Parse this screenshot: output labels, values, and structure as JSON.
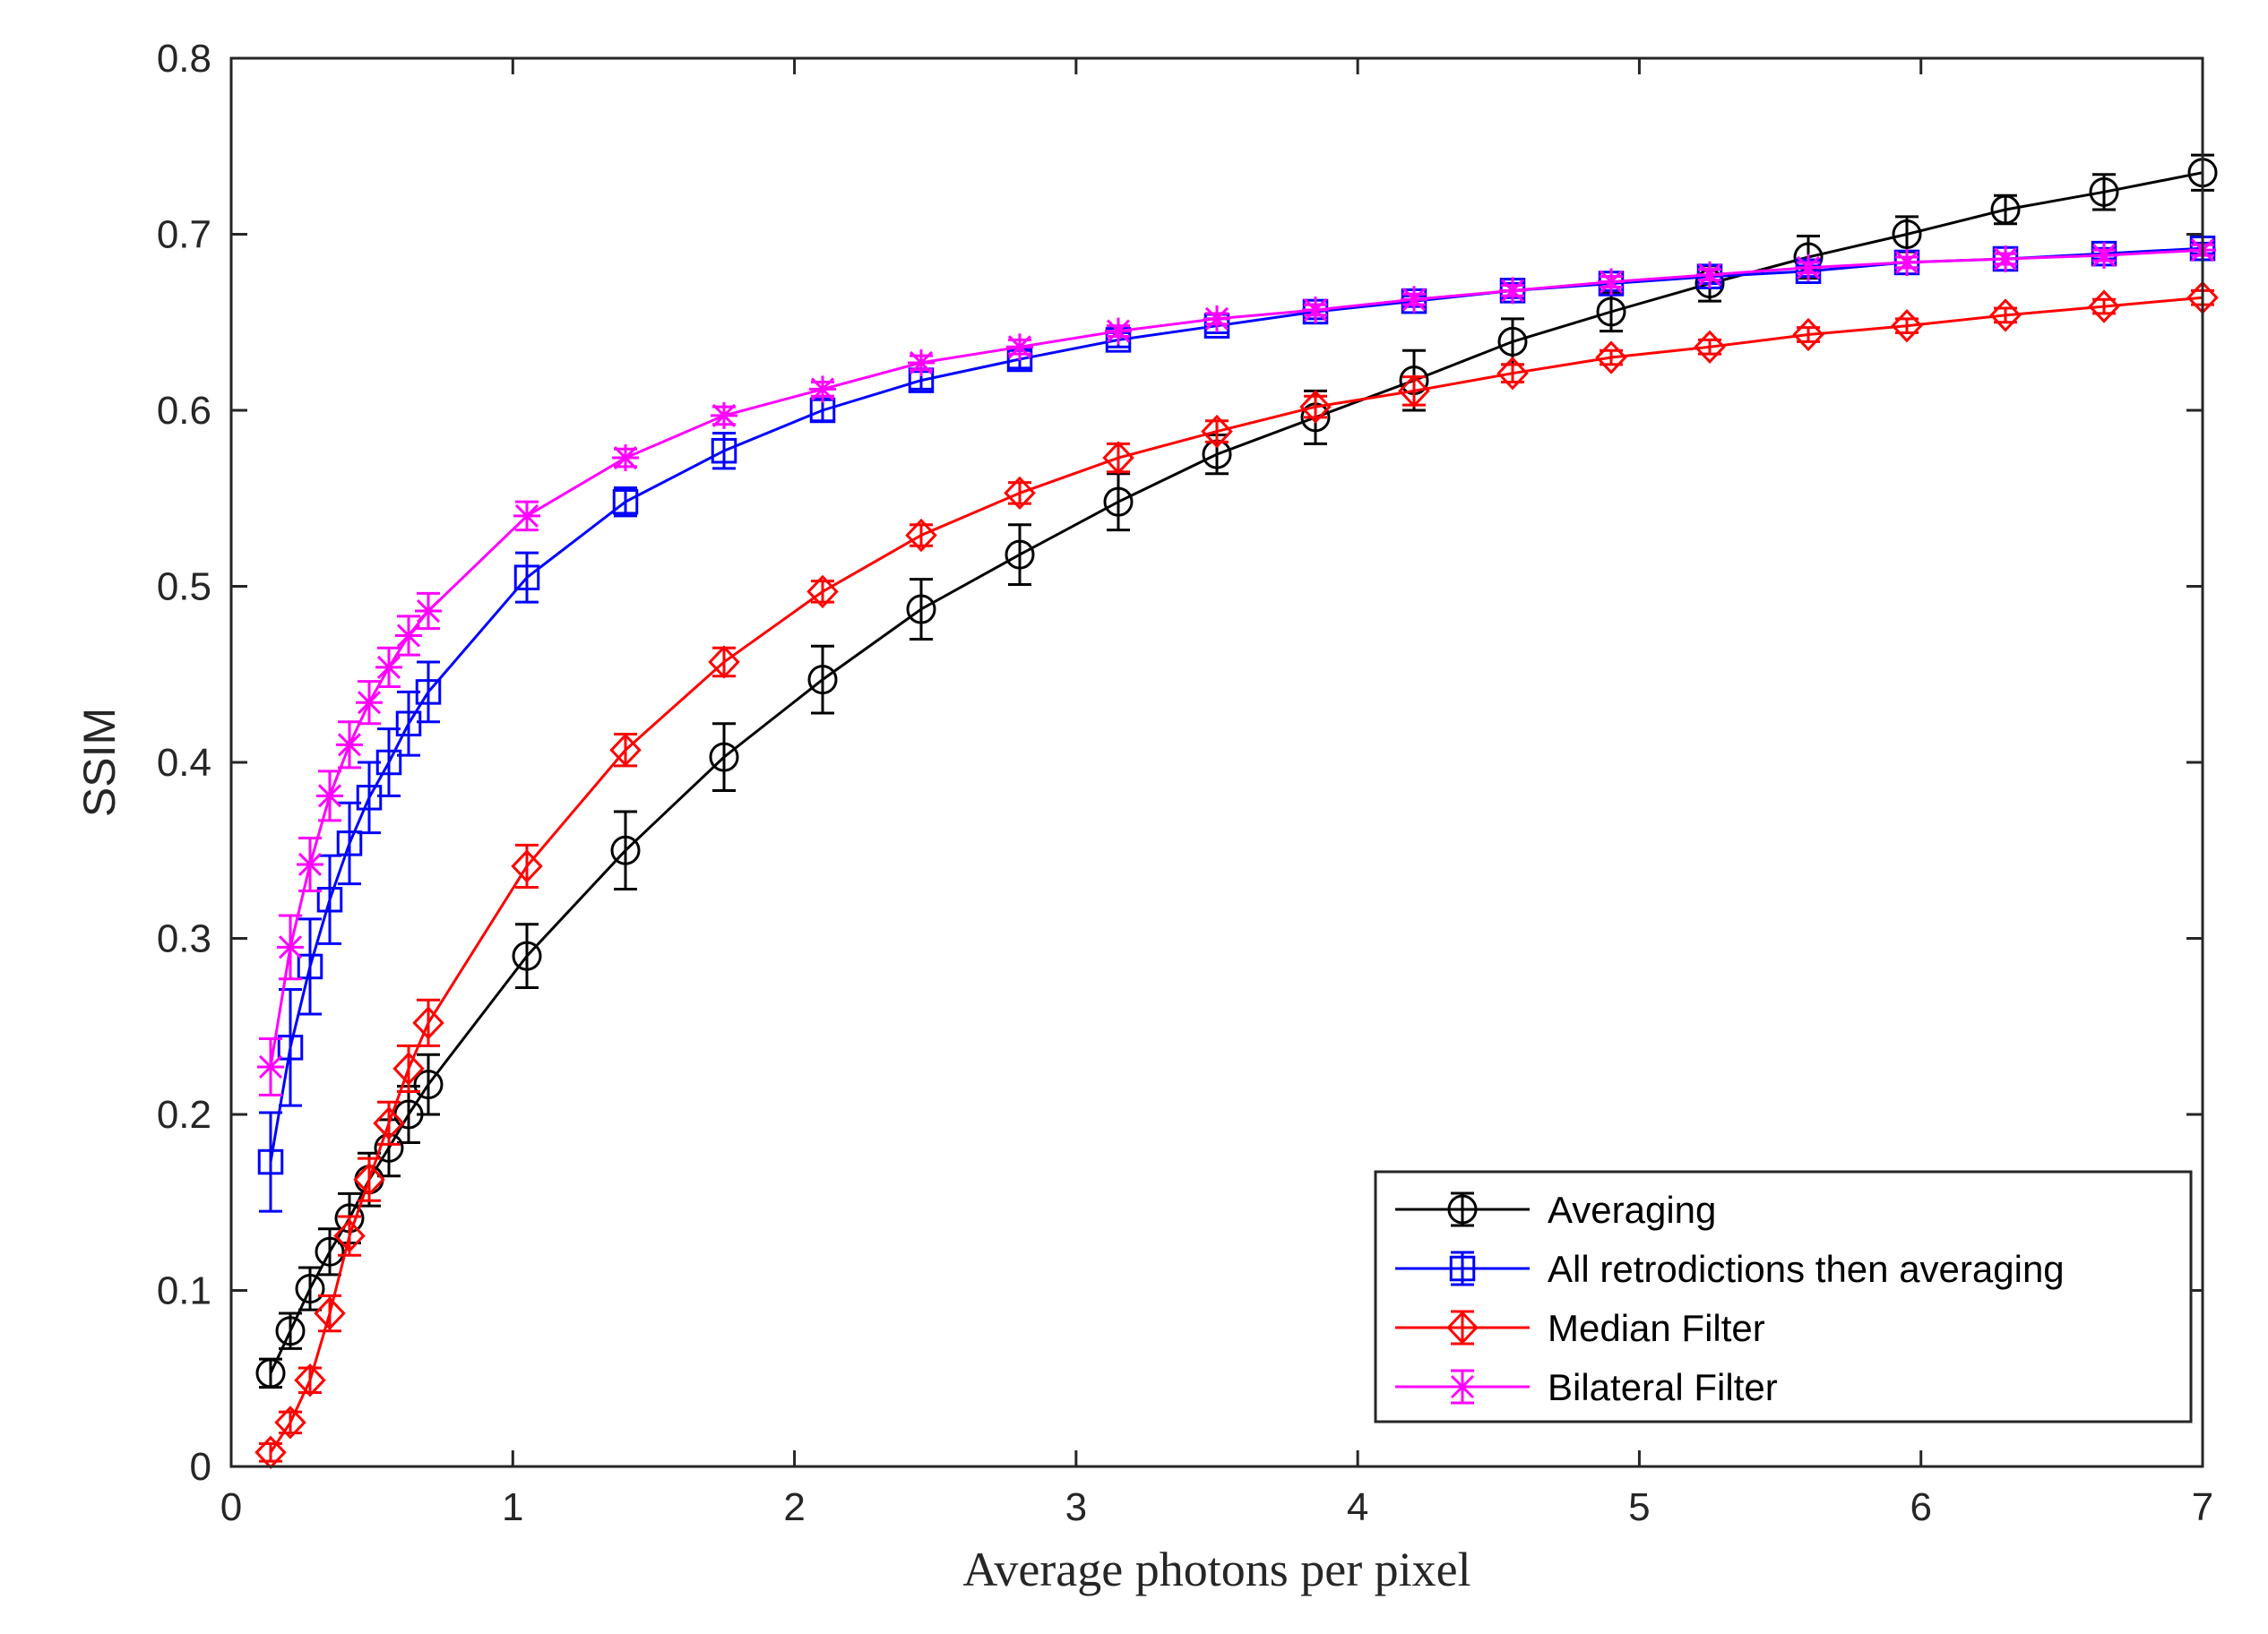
{
  "chart_data": {
    "type": "line",
    "title": "",
    "xlabel": "Average photons per pixel",
    "ylabel": "SSIM",
    "xlim": [
      0,
      7
    ],
    "ylim": [
      0,
      0.8
    ],
    "xticks": [
      0,
      1,
      2,
      3,
      4,
      5,
      6,
      7
    ],
    "xtick_labels": [
      "0",
      "1",
      "2",
      "3",
      "4",
      "5",
      "6",
      "7"
    ],
    "yticks": [
      0,
      0.1,
      0.2,
      0.3,
      0.4,
      0.5,
      0.6,
      0.7,
      0.8
    ],
    "ytick_labels": [
      "0",
      "0.1",
      "0.2",
      "0.3",
      "0.4",
      "0.5",
      "0.6",
      "0.7",
      "0.8"
    ],
    "grid": false,
    "legend_position": "bottom-right",
    "error_bars": true,
    "series": [
      {
        "name": "Averaging",
        "color": "#000000",
        "marker": "circle",
        "x": [
          0.14,
          0.21,
          0.28,
          0.35,
          0.42,
          0.49,
          0.56,
          0.63,
          0.7,
          1.05,
          1.4,
          1.75,
          2.1,
          2.45,
          2.8,
          3.15,
          3.5,
          3.85,
          4.2,
          4.55,
          4.9,
          5.25,
          5.6,
          5.95,
          6.3,
          6.65,
          7.0
        ],
        "y": [
          0.053,
          0.077,
          0.101,
          0.122,
          0.141,
          0.163,
          0.181,
          0.2,
          0.217,
          0.29,
          0.35,
          0.403,
          0.447,
          0.487,
          0.518,
          0.548,
          0.575,
          0.596,
          0.617,
          0.639,
          0.656,
          0.672,
          0.687,
          0.7,
          0.714,
          0.724,
          0.735
        ],
        "err": [
          0.008,
          0.01,
          0.012,
          0.013,
          0.014,
          0.015,
          0.016,
          0.016,
          0.017,
          0.018,
          0.022,
          0.019,
          0.019,
          0.017,
          0.017,
          0.016,
          0.011,
          0.015,
          0.017,
          0.013,
          0.011,
          0.01,
          0.012,
          0.01,
          0.008,
          0.01,
          0.01
        ]
      },
      {
        "name": "All retrodictions then averaging",
        "color": "#0000ff",
        "marker": "square",
        "x": [
          0.14,
          0.21,
          0.28,
          0.35,
          0.42,
          0.49,
          0.56,
          0.63,
          0.7,
          1.05,
          1.4,
          1.75,
          2.1,
          2.45,
          2.8,
          3.15,
          3.5,
          3.85,
          4.2,
          4.55,
          4.9,
          5.25,
          5.6,
          5.95,
          6.3,
          6.65,
          7.0
        ],
        "y": [
          0.173,
          0.238,
          0.284,
          0.322,
          0.354,
          0.38,
          0.4,
          0.422,
          0.44,
          0.505,
          0.548,
          0.577,
          0.6,
          0.617,
          0.629,
          0.64,
          0.648,
          0.656,
          0.662,
          0.668,
          0.672,
          0.676,
          0.679,
          0.684,
          0.686,
          0.689,
          0.692
        ],
        "err": [
          0.028,
          0.033,
          0.027,
          0.025,
          0.023,
          0.02,
          0.019,
          0.018,
          0.017,
          0.014,
          0.008,
          0.01,
          0.006,
          0.005,
          0.005,
          0.004,
          0.004,
          0.004,
          0.003,
          0.004,
          0.004,
          0.004,
          0.003,
          0.003,
          0.003,
          0.003,
          0.003
        ]
      },
      {
        "name": "Median Filter",
        "color": "#ff0000",
        "marker": "diamond",
        "x": [
          0.14,
          0.21,
          0.28,
          0.35,
          0.42,
          0.49,
          0.56,
          0.63,
          0.7,
          1.05,
          1.4,
          1.75,
          2.1,
          2.45,
          2.8,
          3.15,
          3.5,
          3.85,
          4.2,
          4.55,
          4.9,
          5.25,
          5.6,
          5.95,
          6.3,
          6.65,
          7.0
        ],
        "y": [
          0.008,
          0.025,
          0.049,
          0.087,
          0.131,
          0.163,
          0.195,
          0.226,
          0.252,
          0.341,
          0.407,
          0.457,
          0.497,
          0.529,
          0.553,
          0.573,
          0.588,
          0.602,
          0.611,
          0.621,
          0.63,
          0.636,
          0.643,
          0.648,
          0.654,
          0.659,
          0.664
        ],
        "err": [
          0.005,
          0.006,
          0.007,
          0.01,
          0.011,
          0.012,
          0.012,
          0.013,
          0.013,
          0.012,
          0.009,
          0.008,
          0.006,
          0.006,
          0.006,
          0.008,
          0.006,
          0.006,
          0.008,
          0.005,
          0.004,
          0.004,
          0.004,
          0.004,
          0.004,
          0.004,
          0.004
        ]
      },
      {
        "name": "Bilateral Filter",
        "color": "#ff00ff",
        "marker": "star",
        "x": [
          0.14,
          0.21,
          0.28,
          0.35,
          0.42,
          0.49,
          0.56,
          0.63,
          0.7,
          1.05,
          1.4,
          1.75,
          2.1,
          2.45,
          2.8,
          3.15,
          3.5,
          3.85,
          4.2,
          4.55,
          4.9,
          5.25,
          5.6,
          5.95,
          6.3,
          6.65,
          7.0
        ],
        "y": [
          0.227,
          0.295,
          0.342,
          0.381,
          0.41,
          0.434,
          0.454,
          0.472,
          0.486,
          0.54,
          0.573,
          0.597,
          0.612,
          0.627,
          0.636,
          0.645,
          0.652,
          0.657,
          0.663,
          0.668,
          0.673,
          0.677,
          0.681,
          0.684,
          0.686,
          0.688,
          0.691
        ],
        "err": [
          0.016,
          0.018,
          0.015,
          0.014,
          0.013,
          0.012,
          0.011,
          0.011,
          0.01,
          0.008,
          0.005,
          0.005,
          0.004,
          0.004,
          0.004,
          0.003,
          0.003,
          0.003,
          0.003,
          0.003,
          0.003,
          0.003,
          0.003,
          0.003,
          0.003,
          0.003,
          0.003
        ]
      }
    ]
  }
}
